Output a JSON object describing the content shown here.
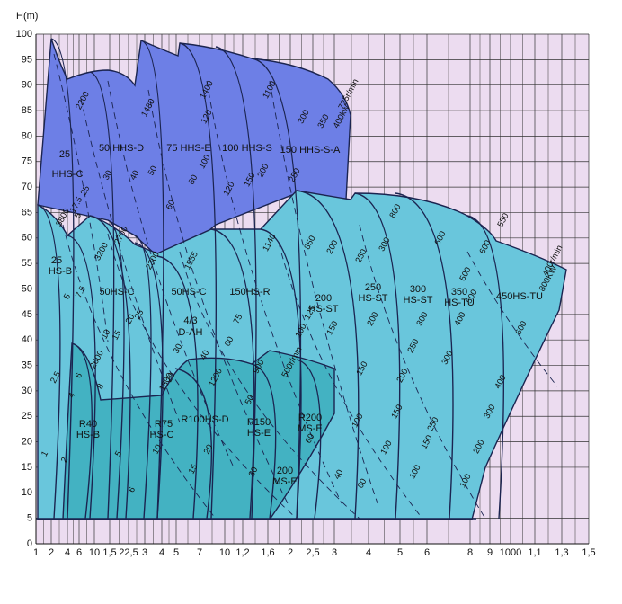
{
  "chart_data": {
    "type": "region",
    "y_label": "H(m)",
    "ylim": [
      0,
      100
    ],
    "yticks": [
      0,
      5,
      10,
      15,
      20,
      25,
      30,
      35,
      40,
      45,
      50,
      55,
      60,
      65,
      70,
      75,
      80,
      85,
      90,
      95,
      100
    ],
    "grid": true,
    "categories": [
      "1",
      "2",
      "4",
      "6",
      "10",
      "1,5",
      "22,5",
      "3",
      "4",
      "5",
      "7",
      "10",
      "1,2",
      "1,6",
      "2",
      "2,5",
      "3",
      "4",
      "5",
      "6",
      "8",
      "9",
      "1000",
      "1,1",
      "1,3",
      "1,5"
    ],
    "models": [
      "25",
      "HHS-C",
      "50 HHS-D",
      "75 HHS-E",
      "100 HHS-S",
      "150 HHS-S-A",
      "25",
      "HS-B",
      "50HS-C",
      "4/3",
      "D-AH",
      "50HS-C",
      "150HS-R",
      "200",
      "HS-ST",
      "250",
      "HS-ST",
      "300",
      "HS-ST",
      "350",
      "HS-TU",
      "450HS-TU",
      "R40",
      "HS-B",
      "R75",
      "HS-C",
      "R100HS-D",
      "R150",
      "HS-E",
      "R200",
      "MS-E",
      "200",
      "MS-E"
    ],
    "annotations": [
      "2200",
      "30",
      "40",
      "50",
      "60",
      "25",
      "17.5",
      "5",
      "1480",
      "1400",
      "120",
      "100",
      "80",
      "1100",
      "300",
      "350",
      "725r/min",
      "400kw",
      "120",
      "150",
      "200",
      "250",
      "3800",
      "3200",
      "2700",
      "2300",
      "1555",
      "1140",
      "850",
      "200",
      "250",
      "300",
      "800",
      "600",
      "550",
      "600",
      "400r/min",
      "800KW",
      "500",
      "400",
      "300",
      "250",
      "200",
      "150",
      "125",
      "100",
      "75",
      "60",
      "40",
      "1200",
      "30",
      "20",
      "1800",
      "900",
      "500r/min",
      "50",
      "10",
      "15",
      "20",
      "25",
      "7.5",
      "5",
      "2.5",
      "4",
      "6",
      "8",
      "2600",
      "1",
      "2",
      "5",
      "6",
      "10",
      "15",
      "20",
      "30",
      "60",
      "40",
      "60",
      "100",
      "100",
      "150",
      "100",
      "150",
      "200",
      "250",
      "300",
      "150",
      "200",
      "100",
      "400",
      "300",
      "600",
      "500"
    ]
  }
}
